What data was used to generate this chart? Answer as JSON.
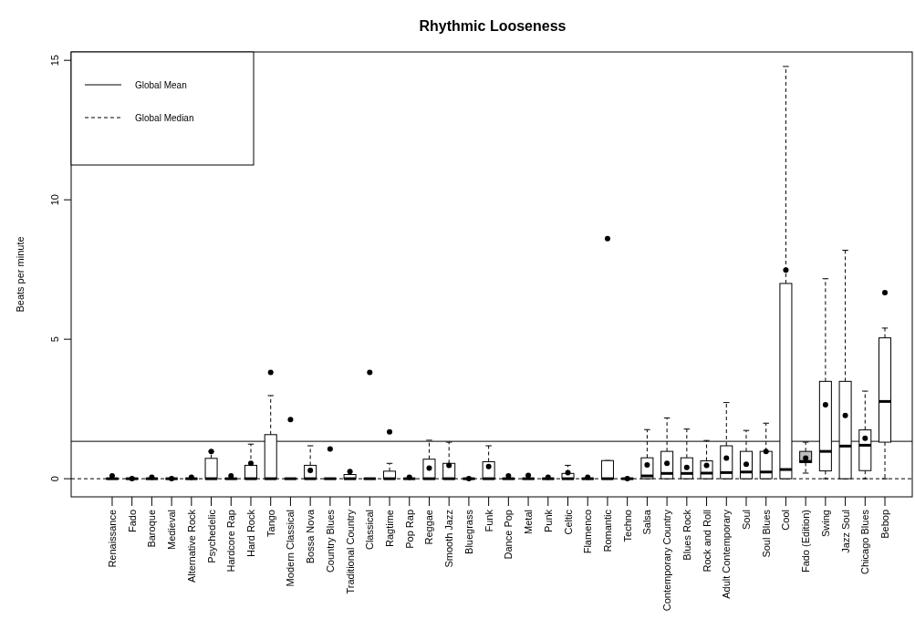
{
  "chart_data": {
    "type": "box",
    "title": "Rhythmic Looseness",
    "ylabel": "Beats per minute",
    "categories": [
      "Renaissance",
      "Fado",
      "Baroque",
      "Medieval",
      "Alternative Rock",
      "Psychedelic",
      "Hardcore Rap",
      "Hard Rock",
      "Tango",
      "Modern Classical",
      "Bossa Nova",
      "Country Blues",
      "Traditional Country",
      "Classical",
      "Ragtime",
      "Pop Rap",
      "Reggae",
      "Smooth Jazz",
      "Bluegrass",
      "Funk",
      "Dance Pop",
      "Metal",
      "Punk",
      "Celtic",
      "Flamenco",
      "Romantic",
      "Techno",
      "Salsa",
      "Contemporary Country",
      "Blues Rock",
      "Rock and Roll",
      "Adult Contemporary",
      "Soul",
      "Soul Blues",
      "Cool",
      "Fado (Edition)",
      "Swing",
      "Jazz Soul",
      "Chicago Blues",
      "Bebop"
    ],
    "boxes": [
      {
        "low": 0,
        "q1": 0,
        "median": 0,
        "q3": 0,
        "high": 0,
        "mean": 0.1
      },
      {
        "low": 0,
        "q1": 0,
        "median": 0,
        "q3": 0,
        "high": 0,
        "mean": 0
      },
      {
        "low": 0,
        "q1": 0,
        "median": 0,
        "q3": 0,
        "high": 0,
        "mean": 0.05
      },
      {
        "low": 0,
        "q1": 0,
        "median": 0,
        "q3": 0,
        "high": 0,
        "mean": 0
      },
      {
        "low": 0,
        "q1": 0,
        "median": 0,
        "q3": 0,
        "high": 0,
        "mean": 0.05
      },
      {
        "low": 0,
        "q1": 0,
        "median": 0,
        "q3": 0.73,
        "high": 0.98,
        "mean": 0.98
      },
      {
        "low": 0,
        "q1": 0,
        "median": 0,
        "q3": 0,
        "high": 0,
        "mean": 0.1
      },
      {
        "low": 0,
        "q1": 0,
        "median": 0,
        "q3": 0.48,
        "high": 1.24,
        "mean": 0.55
      },
      {
        "low": 0,
        "q1": 0,
        "median": 0,
        "q3": 1.58,
        "high": 2.98,
        "mean": 3.81
      },
      {
        "low": 0,
        "q1": 0,
        "median": 0,
        "q3": 0,
        "high": 0,
        "mean": 2.12
      },
      {
        "low": 0,
        "q1": 0,
        "median": 0,
        "q3": 0.48,
        "high": 1.18,
        "mean": 0.3
      },
      {
        "low": 0,
        "q1": 0,
        "median": 0,
        "q3": 0,
        "high": 0,
        "mean": 1.07
      },
      {
        "low": 0,
        "q1": 0,
        "median": 0,
        "q3": 0.15,
        "high": 0.15,
        "mean": 0.26
      },
      {
        "low": 0,
        "q1": 0,
        "median": 0,
        "q3": 0,
        "high": 0,
        "mean": 3.81
      },
      {
        "low": 0,
        "q1": 0,
        "median": 0,
        "q3": 0.27,
        "high": 0.55,
        "mean": 1.68
      },
      {
        "low": 0,
        "q1": 0,
        "median": 0,
        "q3": 0,
        "high": 0,
        "mean": 0.05
      },
      {
        "low": 0,
        "q1": 0,
        "median": 0,
        "q3": 0.7,
        "high": 1.38,
        "mean": 0.38
      },
      {
        "low": 0,
        "q1": 0,
        "median": 0,
        "q3": 0.55,
        "high": 1.31,
        "mean": 0.48
      },
      {
        "low": 0,
        "q1": 0,
        "median": 0,
        "q3": 0,
        "high": 0,
        "mean": 0
      },
      {
        "low": 0,
        "q1": 0,
        "median": 0,
        "q3": 0.61,
        "high": 1.18,
        "mean": 0.44
      },
      {
        "low": 0,
        "q1": 0,
        "median": 0,
        "q3": 0,
        "high": 0,
        "mean": 0.1
      },
      {
        "low": 0,
        "q1": 0,
        "median": 0,
        "q3": 0,
        "high": 0,
        "mean": 0.12
      },
      {
        "low": 0,
        "q1": 0,
        "median": 0,
        "q3": 0,
        "high": 0,
        "mean": 0.05
      },
      {
        "low": 0,
        "q1": 0,
        "median": 0,
        "q3": 0.19,
        "high": 0.48,
        "mean": 0.22
      },
      {
        "low": 0,
        "q1": 0,
        "median": 0,
        "q3": 0,
        "high": 0,
        "mean": 0.05
      },
      {
        "low": 0,
        "q1": 0,
        "median": 0,
        "q3": 0.65,
        "high": 0.65,
        "mean": 8.61
      },
      {
        "low": 0,
        "q1": 0,
        "median": 0,
        "q3": 0,
        "high": 0,
        "mean": 0
      },
      {
        "low": 0,
        "q1": 0,
        "median": 0.1,
        "q3": 0.75,
        "high": 1.76,
        "mean": 0.49
      },
      {
        "low": 0,
        "q1": 0,
        "median": 0.19,
        "q3": 0.98,
        "high": 2.18,
        "mean": 0.55
      },
      {
        "low": 0,
        "q1": 0,
        "median": 0.19,
        "q3": 0.75,
        "high": 1.78,
        "mean": 0.4
      },
      {
        "low": 0,
        "q1": 0,
        "median": 0.2,
        "q3": 0.64,
        "high": 1.37,
        "mean": 0.48
      },
      {
        "low": 0,
        "q1": 0,
        "median": 0.22,
        "q3": 1.18,
        "high": 2.73,
        "mean": 0.74
      },
      {
        "low": 0,
        "q1": 0,
        "median": 0.24,
        "q3": 0.98,
        "high": 1.73,
        "mean": 0.52
      },
      {
        "low": 0,
        "q1": 0,
        "median": 0.24,
        "q3": 0.98,
        "high": 1.99,
        "mean": 0.98
      },
      {
        "low": 0,
        "q1": 0,
        "median": 0.33,
        "q3": 7.0,
        "high": 14.78,
        "mean": 7.48
      },
      {
        "low": 0.2,
        "q1": 0.58,
        "median": 0.62,
        "q3": 0.98,
        "high": 1.31,
        "mean": 0.74
      },
      {
        "low": 0,
        "q1": 0.28,
        "median": 0.98,
        "q3": 3.49,
        "high": 7.17,
        "mean": 2.65
      },
      {
        "low": 0,
        "q1": 0,
        "median": 1.17,
        "q3": 3.49,
        "high": 8.19,
        "mean": 2.27
      },
      {
        "low": 0,
        "q1": 0.29,
        "median": 1.2,
        "q3": 1.75,
        "high": 3.14,
        "mean": 1.45
      },
      {
        "low": 0,
        "q1": 1.31,
        "median": 2.77,
        "q3": 5.05,
        "high": 5.4,
        "mean": 6.67
      }
    ],
    "colors": [
      "#ffffff",
      "#ffffff",
      "#ffffff",
      "#ffffff",
      "#ffffff",
      "#ffffff",
      "#ffffff",
      "#ffffff",
      "#ffffff",
      "#ffffff",
      "#ffffff",
      "#ffffff",
      "#ffffff",
      "#ffffff",
      "#ffffff",
      "#ffffff",
      "#ffffff",
      "#ffffff",
      "#ffffff",
      "#ffffff",
      "#ffffff",
      "#ffffff",
      "#ffffff",
      "#ffffff",
      "#ffffff",
      "#ffffff",
      "#ffffff",
      "#ffffff",
      "#ffffff",
      "#ffffff",
      "#ffffff",
      "#ffffff",
      "#ffffff",
      "#ffffff",
      "#ffffff",
      "#bebebe",
      "#ffffff",
      "#ffffff",
      "#ffffff",
      "#ffffff"
    ],
    "ylim": [
      -0.65,
      15.3
    ],
    "yticks": [
      0,
      5,
      10,
      15
    ],
    "ref_lines": [
      {
        "axis": "y",
        "value": 1.34,
        "label": "Global Mean",
        "line_style": "solid"
      },
      {
        "axis": "y",
        "value": 0,
        "label": "Global Median",
        "line_style": "dashed"
      }
    ],
    "legend": "top left",
    "grid": false
  }
}
